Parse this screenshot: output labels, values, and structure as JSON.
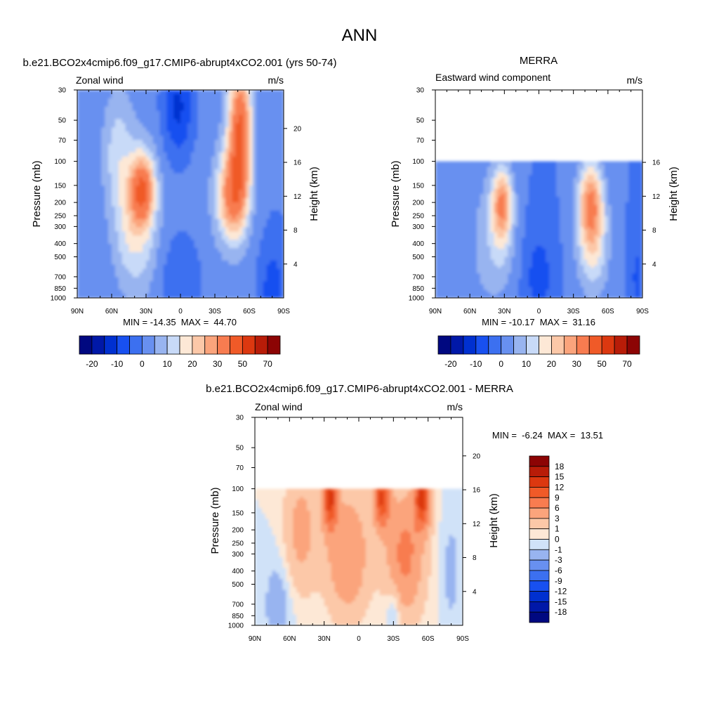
{
  "page_title": "ANN",
  "chart_data": [
    {
      "type": "heatmap",
      "title": "b.e21.BCO2x4cmip6.f09_g17.CMIP6-abrupt4xCO2.001 (yrs 50-74)",
      "left_string": "Zonal wind",
      "right_string": "m/s",
      "xlabel": "",
      "ylabel": "Pressure (mb)",
      "ylabel_right": "Height (km)",
      "x_ticks": [
        "90N",
        "60N",
        "30N",
        "0",
        "30S",
        "60S",
        "90S"
      ],
      "x_values": [
        90,
        60,
        30,
        0,
        -30,
        -60,
        -90
      ],
      "y_ticks": [
        30,
        50,
        70,
        100,
        150,
        200,
        250,
        300,
        400,
        500,
        700,
        850,
        1000
      ],
      "y_right_ticks": [
        20,
        16,
        12,
        8,
        4
      ],
      "ylim": [
        1000,
        30
      ],
      "y_scale": "log",
      "data_top_pressure": 30,
      "stats": "MIN = -14.35  MAX =  44.70",
      "colorbar_orientation": "horizontal",
      "colorbar_labels": [
        "-20",
        "-10",
        "0",
        "10",
        "20",
        "30",
        "50",
        "70"
      ]
    },
    {
      "type": "heatmap",
      "title": "MERRA",
      "left_string": "Eastward wind component",
      "right_string": "m/s",
      "xlabel": "",
      "ylabel": "Pressure (mb)",
      "ylabel_right": "Height (km)",
      "x_ticks": [
        "90N",
        "60N",
        "30N",
        "0",
        "30S",
        "60S",
        "90S"
      ],
      "x_values": [
        90,
        60,
        30,
        0,
        -30,
        -60,
        -90
      ],
      "y_ticks": [
        30,
        50,
        70,
        100,
        150,
        200,
        250,
        300,
        400,
        500,
        700,
        850,
        1000
      ],
      "y_right_ticks": [
        16,
        12,
        8,
        4
      ],
      "ylim": [
        1000,
        30
      ],
      "y_scale": "log",
      "data_top_pressure": 100,
      "stats": "MIN = -10.17  MAX =  31.16",
      "colorbar_orientation": "horizontal",
      "colorbar_labels": [
        "-20",
        "-10",
        "0",
        "10",
        "20",
        "30",
        "50",
        "70"
      ]
    },
    {
      "type": "heatmap",
      "title": "b.e21.BCO2x4cmip6.f09_g17.CMIP6-abrupt4xCO2.001 - MERRA",
      "left_string": "Zonal wind",
      "right_string": "m/s",
      "xlabel": "",
      "ylabel": "Pressure (mb)",
      "ylabel_right": "Height (km)",
      "x_ticks": [
        "90N",
        "60N",
        "30N",
        "0",
        "30S",
        "60S",
        "90S"
      ],
      "x_values": [
        90,
        60,
        30,
        0,
        -30,
        -60,
        -90
      ],
      "y_ticks": [
        30,
        50,
        70,
        100,
        150,
        200,
        250,
        300,
        400,
        500,
        700,
        850,
        1000
      ],
      "y_right_ticks": [
        20,
        16,
        12,
        8,
        4
      ],
      "ylim": [
        1000,
        30
      ],
      "y_scale": "log",
      "data_top_pressure": 100,
      "stats": "MIN =  -6.24  MAX =  13.51",
      "colorbar_orientation": "vertical",
      "colorbar_labels": [
        "18",
        "15",
        "12",
        "9",
        "6",
        "3",
        "1",
        "0",
        "-1",
        "-3",
        "-6",
        "-9",
        "-12",
        "-15",
        "-18"
      ]
    }
  ],
  "colors": {
    "colorbar_16": [
      "#000880",
      "#0018a8",
      "#0030d0",
      "#1850f0",
      "#3c70f0",
      "#6890f0",
      "#98b4f0",
      "#c8daf8",
      "#fde8d6",
      "#fcc8a8",
      "#fba47c",
      "#f87c50",
      "#f05a28",
      "#dc3810",
      "#b81c08",
      "#8c0404"
    ],
    "diff_colorbar_16": [
      "#000880",
      "#0018a8",
      "#0030d0",
      "#1850f0",
      "#3c70f0",
      "#6890f0",
      "#98b4f0",
      "#d0e2f8",
      "#fde8d6",
      "#fcc8a8",
      "#fba47c",
      "#f87c50",
      "#f05a28",
      "#dc3810",
      "#b81c08",
      "#8c0404"
    ]
  }
}
